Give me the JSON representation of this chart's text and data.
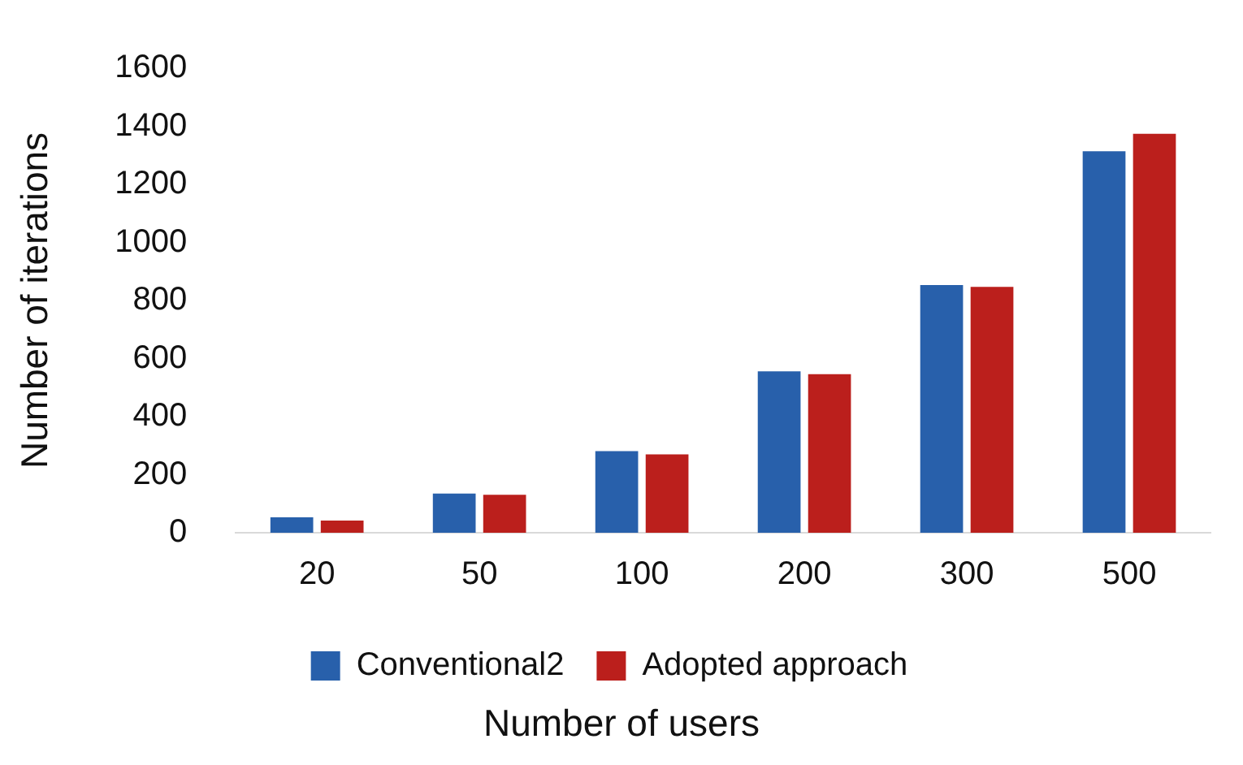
{
  "chart_data": {
    "type": "bar",
    "xlabel": "Number of users",
    "ylabel": "Number of iterations",
    "categories": [
      "20",
      "50",
      "100",
      "200",
      "300",
      "500"
    ],
    "series": [
      {
        "name": "Conventional2",
        "color": "#2860ab",
        "values": [
          53,
          135,
          281,
          556,
          853,
          1314
        ]
      },
      {
        "name": "Adopted approach",
        "color": "#bb1f1c",
        "values": [
          42,
          131,
          270,
          546,
          847,
          1374
        ]
      }
    ],
    "ylim": [
      0,
      1600
    ],
    "yticks": [
      0,
      200,
      400,
      600,
      800,
      1000,
      1200,
      1400,
      1600
    ],
    "grid": false,
    "legend": "bottom"
  }
}
